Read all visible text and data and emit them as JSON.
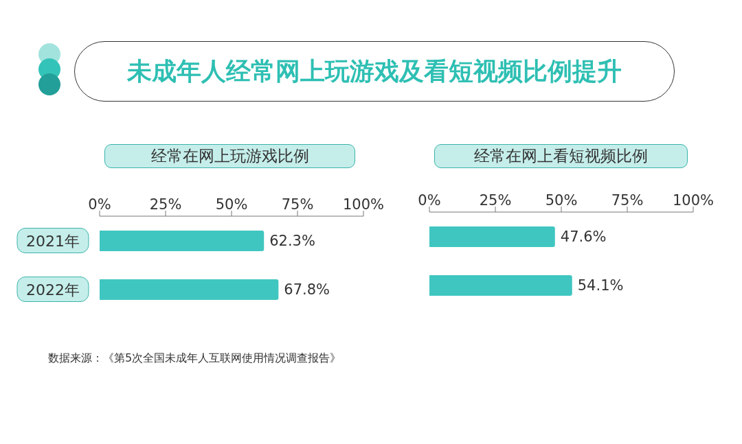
{
  "chart_data": [
    {
      "type": "bar",
      "title": "未成年人经常网上玩游戏及看短视频比例提升",
      "subtitle": "经常在网上玩游戏比例",
      "orientation": "horizontal",
      "categories": [
        "2021年",
        "2022年"
      ],
      "values": [
        62.3,
        67.8
      ],
      "value_labels": [
        "62.3%",
        "67.8%"
      ],
      "color": "#40c6c0",
      "xlim": [
        0,
        100
      ],
      "xticks": [
        {
          "value": 0,
          "label": "0%"
        },
        {
          "value": 25,
          "label": "25%"
        },
        {
          "value": 50,
          "label": "50%"
        },
        {
          "value": 75,
          "label": "75%"
        },
        {
          "value": 100,
          "label": "100%"
        }
      ],
      "annotations": [
        "数据来源：《第5次全国未成年人互联网使用情况调查报告》"
      ]
    },
    {
      "type": "bar",
      "title": "经常在网上看短视频比例",
      "orientation": "horizontal",
      "categories": [
        null,
        null
      ],
      "values": [
        47.6,
        54.1
      ],
      "value_labels": [
        "47.6%",
        "54.1%"
      ],
      "color": "#40c6c0",
      "xlim": [
        0,
        100
      ],
      "xticks": [
        {
          "value": 0,
          "label": "0%"
        },
        {
          "value": 25,
          "label": "25%"
        },
        {
          "value": 50,
          "label": "50%"
        },
        {
          "value": 75,
          "label": "75%"
        },
        {
          "value": 100,
          "label": "100%"
        }
      ],
      "tick_labels": "x"
    }
  ]
}
